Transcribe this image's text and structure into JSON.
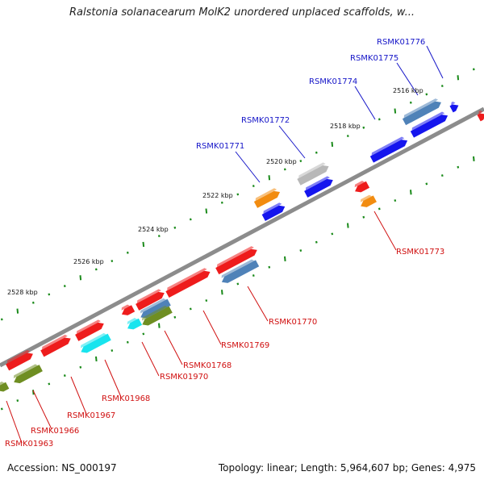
{
  "title": "Ralstonia solanacearum MolK2 unordered unplaced scaffolds, w...",
  "footer": {
    "accession": "Accession: NS_000197",
    "summary": "Topology: linear; Length: 5,964,607 bp; Genes: 4,975"
  },
  "colors": {
    "backbone": "#8c8c8c",
    "tick": "#1a8a1a",
    "label_top": "#1515c8",
    "label_bottom": "#d01010",
    "red": "#ee1c1c",
    "blue": "#1515ee",
    "steelblue": "#4f82b8",
    "orange": "#f28c10",
    "gray": "#b8b8b8",
    "cyan": "#18e4ee",
    "olive": "#6f8e22"
  },
  "ruler_labels": [
    "2516 kbp",
    "2518 kbp",
    "2520 kbp",
    "2522 kbp",
    "2524 kbp",
    "2526 kbp",
    "2528 kbp"
  ],
  "gene_labels": {
    "top": [
      "RSMK01776",
      "RSMK01775",
      "RSMK01774",
      "RSMK01772",
      "RSMK01771"
    ],
    "bottom": [
      "RSMK01773",
      "RSMK01770",
      "RSMK01769",
      "RSMK01768",
      "RSMK01970",
      "RSMK01968",
      "RSMK01967",
      "RSMK01966",
      "RSMK01963"
    ]
  }
}
